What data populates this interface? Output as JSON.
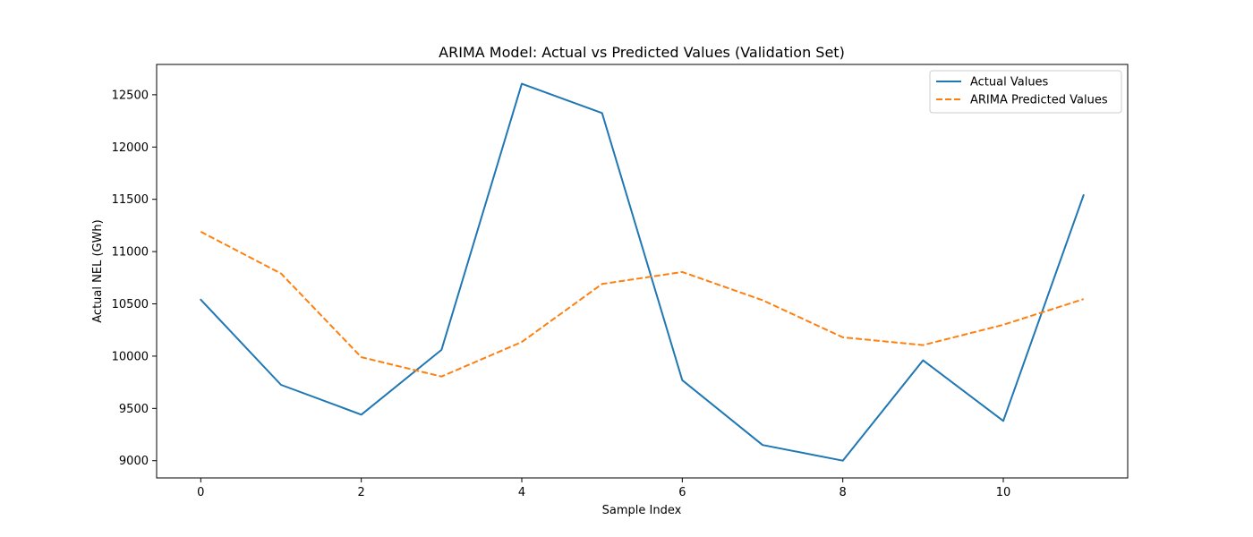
{
  "chart_data": {
    "type": "line",
    "title": "ARIMA Model: Actual vs Predicted Values (Validation Set)",
    "xlabel": "Sample Index",
    "ylabel": "Actual NEL (GWh)",
    "x": [
      0,
      1,
      2,
      3,
      4,
      5,
      6,
      7,
      8,
      9,
      10,
      11
    ],
    "xlim": [
      -0.55,
      11.55
    ],
    "ylim": [
      8835,
      12790
    ],
    "xticks": [
      0,
      2,
      4,
      6,
      8,
      10
    ],
    "yticks": [
      9000,
      9500,
      10000,
      10500,
      11000,
      11500,
      12000,
      12500
    ],
    "grid": false,
    "legend_position": "upper right",
    "series": [
      {
        "name": "Actual Values",
        "color": "#1f77b4",
        "style": "solid",
        "values": [
          10540,
          9725,
          9440,
          10060,
          12605,
          12325,
          9770,
          9150,
          9000,
          9960,
          9380,
          11540
        ]
      },
      {
        "name": "ARIMA Predicted Values",
        "color": "#ff7f0e",
        "style": "dashed",
        "values": [
          11190,
          10790,
          9990,
          9805,
          10135,
          10690,
          10805,
          10535,
          10180,
          10105,
          10300,
          10545
        ]
      }
    ]
  }
}
